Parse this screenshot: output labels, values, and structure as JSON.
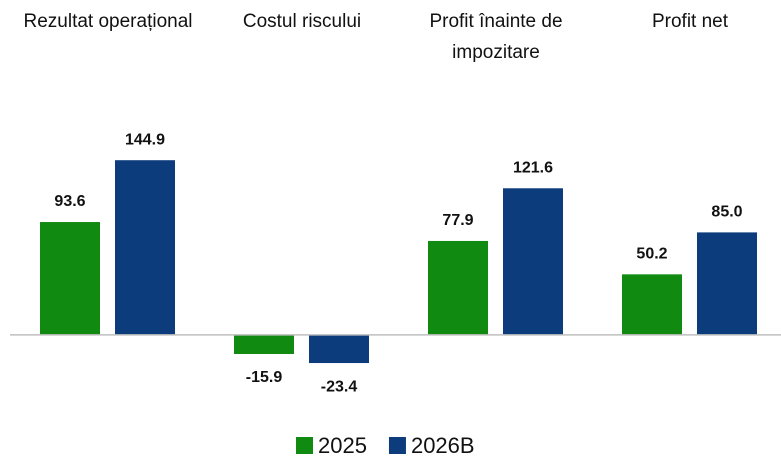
{
  "chart_data": {
    "type": "bar",
    "categories": [
      "Rezultat operațional",
      "Costul riscului",
      "Profit înainte de impozitare",
      "Profit net"
    ],
    "series": [
      {
        "name": "2025",
        "color": "#118a11",
        "values": [
          93.6,
          -15.9,
          77.9,
          50.2
        ],
        "value_labels": [
          "93.6",
          "-15.9",
          "77.9",
          "50.2"
        ]
      },
      {
        "name": "2026B",
        "color": "#0c3c7c",
        "values": [
          144.9,
          -23.4,
          121.6,
          85.0
        ],
        "value_labels": [
          "144.9",
          "-23.4",
          "121.6",
          "85.0"
        ]
      }
    ],
    "ylim": [
      -30,
      160
    ],
    "legend": "bottom"
  }
}
